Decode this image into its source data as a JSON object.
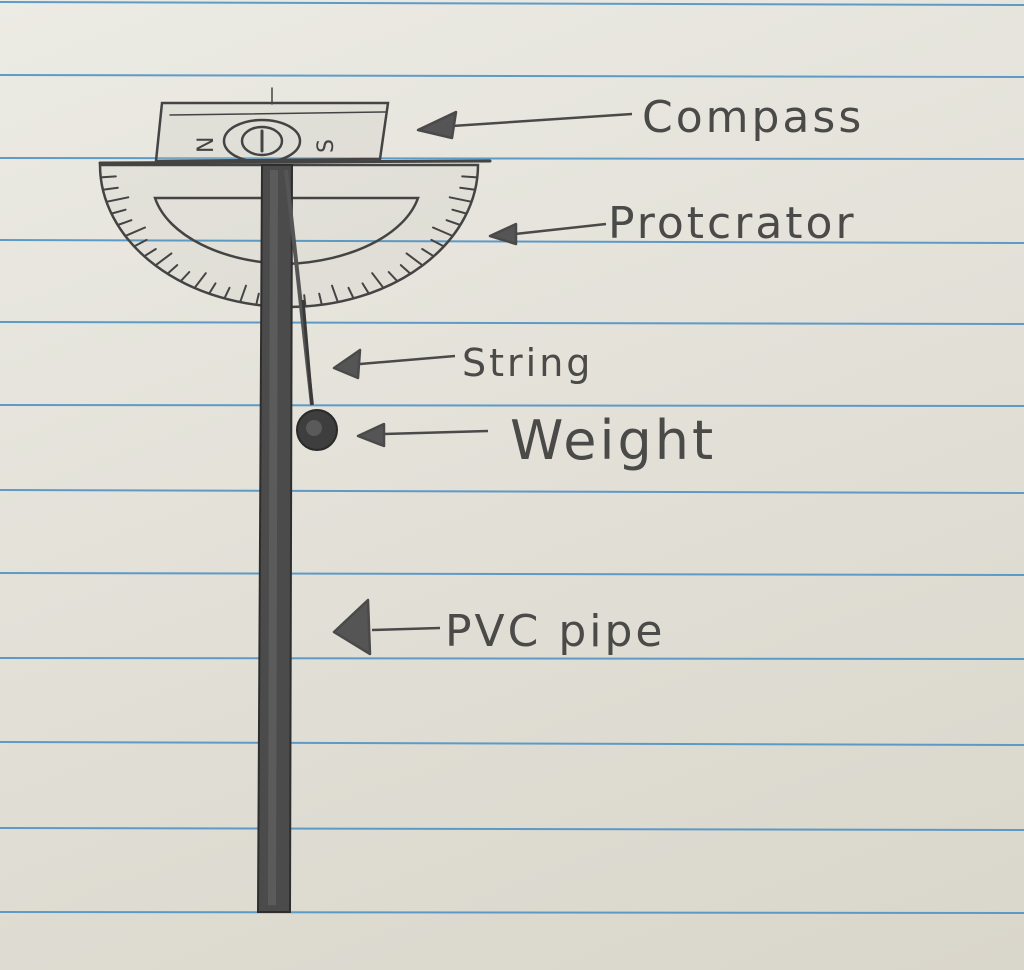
{
  "diagram": {
    "labels": {
      "compass": "Compass",
      "protractor": "Protcrator",
      "string": "String",
      "weight": "Weight",
      "pvc_pipe": "PVC pipe"
    },
    "compass_markings": {
      "north": "N",
      "south": "S"
    }
  },
  "colors": {
    "paper": "#e6e4dc",
    "ruled_line": "#4f93c5",
    "pencil": "#3b3b3b"
  }
}
